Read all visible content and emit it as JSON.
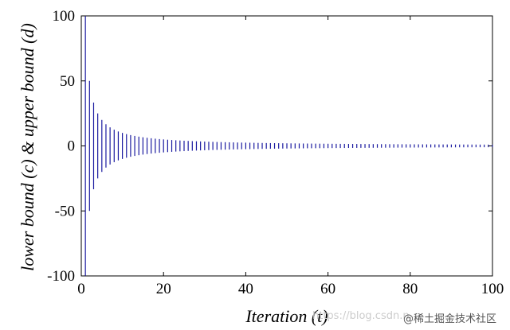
{
  "chart_data": {
    "type": "line",
    "title": "",
    "xlabel": "Iteration (t)",
    "ylabel": "lower bound (c) & upper bound (d)",
    "xlim": [
      0,
      100
    ],
    "ylim": [
      -100,
      100
    ],
    "xticks": [
      0,
      20,
      40,
      60,
      80,
      100
    ],
    "yticks": [
      100,
      50,
      0,
      -50,
      -100
    ],
    "grid": false,
    "legend": "none",
    "series": [
      {
        "name": "upper bound (d)",
        "rule": "d(t) = 100 / t",
        "x_range": [
          1,
          100
        ]
      },
      {
        "name": "lower bound (c)",
        "rule": "c(t) = -100 / t",
        "x_range": [
          1,
          100
        ]
      }
    ],
    "line_color": "#1a1aa0"
  },
  "watermark": {
    "left": "https://blog.csdn.n",
    "right": "@稀土掘金技术社区"
  }
}
